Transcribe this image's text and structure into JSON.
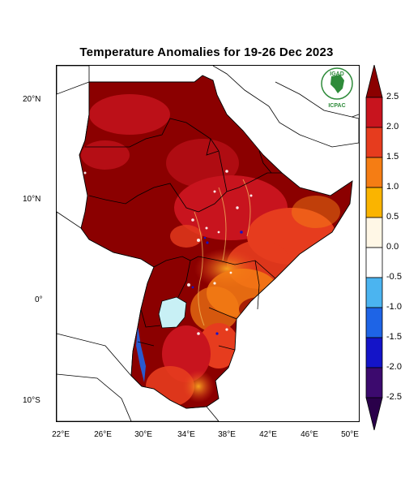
{
  "title": "Temperature Anomalies for 19-26 Dec 2023",
  "logo": {
    "top_text": "IGAD",
    "bottom_text": "ICPAC"
  },
  "lat_labels": [
    "20°N",
    "10°N",
    "0°",
    "10°S"
  ],
  "lon_labels": [
    "22°E",
    "26°E",
    "30°E",
    "34°E",
    "38°E",
    "42°E",
    "46°E",
    "50°E"
  ],
  "colorbar": {
    "labels": [
      "2.5",
      "2.0",
      "1.5",
      "1.0",
      "0.5",
      "0.0",
      "-0.5",
      "-1.0",
      "-1.5",
      "-2.0",
      "-2.5"
    ],
    "colors": [
      "#8b0000",
      "#c8141e",
      "#e63c1e",
      "#f57d14",
      "#fab400",
      "#fff7e6",
      "#ffffff",
      "#4bb4f0",
      "#1e64e6",
      "#1414c8",
      "#3c0a6e",
      "#2a004a"
    ]
  },
  "legend_colors": {
    "anomaly_high": "#8b0000",
    "anomaly_mid": "#e63c1e",
    "lake": "#c8f0f5"
  }
}
